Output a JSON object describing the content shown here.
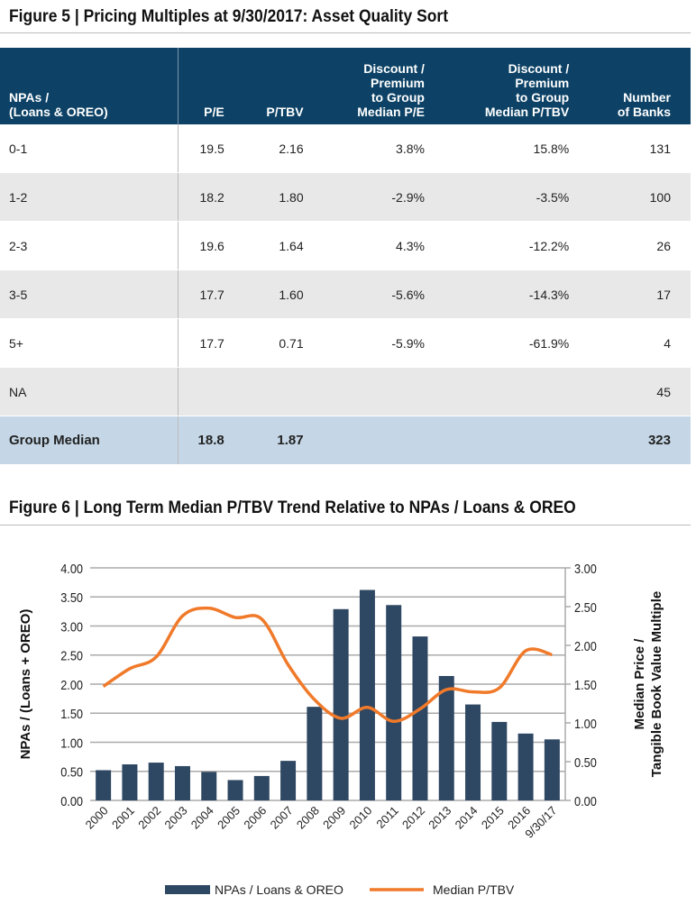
{
  "figure5": {
    "title": "Figure 5 | Pricing Multiples at 9/30/2017: Asset Quality Sort",
    "headers": [
      [
        "NPAs /",
        "(Loans & OREO)"
      ],
      [
        "P/E"
      ],
      [
        "P/TBV"
      ],
      [
        "Discount /",
        "Premium",
        "to Group",
        "Median P/E"
      ],
      [
        "Discount /",
        "Premium",
        "to Group",
        "Median P/TBV"
      ],
      [
        "Number",
        "of Banks"
      ]
    ],
    "rows": [
      [
        "0-1",
        "19.5",
        "2.16",
        "3.8%",
        "15.8%",
        "131"
      ],
      [
        "1-2",
        "18.2",
        "1.80",
        "-2.9%",
        "-3.5%",
        "100"
      ],
      [
        "2-3",
        "19.6",
        "1.64",
        "4.3%",
        "-12.2%",
        "26"
      ],
      [
        "3-5",
        "17.7",
        "1.60",
        "-5.6%",
        "-14.3%",
        "17"
      ],
      [
        "5+",
        "17.7",
        "0.71",
        "-5.9%",
        "-61.9%",
        "4"
      ],
      [
        "NA",
        "",
        "",
        "",
        "",
        "45"
      ]
    ],
    "median_row": [
      "Group Median",
      "18.8",
      "1.87",
      "",
      "",
      "323"
    ],
    "header_color": "#0d4266"
  },
  "figure6": {
    "title": "Figure 6 | Long Term Median P/TBV Trend Relative to NPAs / Loans & OREO"
  },
  "chart_data": {
    "type": "bar+line",
    "categories": [
      "2000",
      "2001",
      "2002",
      "2003",
      "2004",
      "2005",
      "2006",
      "2007",
      "2008",
      "2009",
      "2010",
      "2011",
      "2012",
      "2013",
      "2014",
      "2015",
      "2016",
      "9/30/17"
    ],
    "series": [
      {
        "name": "NPAs / Loans  & OREO",
        "type": "bar",
        "axis": "left",
        "color": "#2e4762",
        "values": [
          0.52,
          0.62,
          0.65,
          0.59,
          0.49,
          0.35,
          0.42,
          0.68,
          1.61,
          3.29,
          3.62,
          3.36,
          2.82,
          2.14,
          1.65,
          1.35,
          1.15,
          1.05
        ]
      },
      {
        "name": "Median P/TBV",
        "type": "line",
        "axis": "right",
        "color": "#f07a2a",
        "values": [
          1.47,
          1.7,
          1.85,
          2.38,
          2.48,
          2.36,
          2.34,
          1.75,
          1.3,
          1.06,
          1.2,
          1.02,
          1.18,
          1.43,
          1.4,
          1.45,
          1.93,
          1.88
        ]
      }
    ],
    "ylabel": "NPAs / (Loans + OREO)",
    "ylabel_right": [
      "Median Price  /",
      "Tangible Book Value  Multiple"
    ],
    "ylim": [
      0,
      4
    ],
    "ylim_right": [
      0,
      3
    ],
    "yticks": [
      "0.00",
      "0.50",
      "1.00",
      "1.50",
      "2.00",
      "2.50",
      "3.00",
      "3.50",
      "4.00"
    ],
    "yticks_right": [
      "0.00",
      "0.50",
      "1.00",
      "1.50",
      "2.00",
      "2.50",
      "3.00"
    ],
    "grid": true,
    "legend": "bottom"
  }
}
